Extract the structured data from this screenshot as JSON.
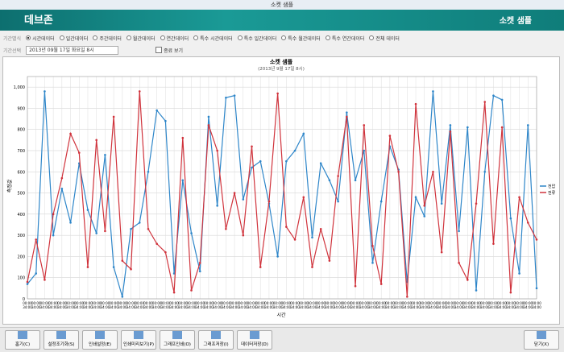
{
  "window": {
    "title": "소켓 샘플"
  },
  "header": {
    "logo": "데브존",
    "title": "소켓 샘플"
  },
  "toolbar": {
    "period_label": "기간별식",
    "options": [
      "시간데이터",
      "일간데이터",
      "주간데이터",
      "월간데이터",
      "연간데이터",
      "특수 시간데이터",
      "특수 일간데이터",
      "특수 월간데이터",
      "특수 연간데이터",
      "전체 데이터"
    ],
    "range_label": "기간선택",
    "date": "2013년 09월 17일 화요일 8시",
    "checkbox": "종료 보기"
  },
  "buttons": [
    "홈기(C)",
    "설정조기화(S)",
    "인쇄설정(E)",
    "인쇄미리보기(P)",
    "그래프인쇄(O)",
    "그래프저장(I)",
    "데이터저장(D)"
  ],
  "close_button": "닫기(X)",
  "chart_data": {
    "type": "line",
    "title": "소켓 샘플",
    "subtitle": "(2013년 9월 17일 8시)",
    "x_label": "시간",
    "y_label": "측정값",
    "categories": [
      "00:00 34:00",
      "00:00 34:00",
      "00:00 34:00",
      "00:00 34:00",
      "00:00 34:00",
      "00:00 34:00",
      "00:00 34:00",
      "00:00 34:00",
      "00:00 34:00",
      "00:00 34:00",
      "00:00 34:00",
      "00:00 34:00",
      "00:00 34:00",
      "00:00 34:00",
      "00:00 34:00",
      "00:00 34:00",
      "00:00 34:00",
      "00:00 34:00",
      "00:00 34:00",
      "00:00 34:00",
      "00:00 34:00",
      "00:00 34:00",
      "00:00 34:00",
      "00:00 34:00",
      "00:00 34:00",
      "00:00 34:00",
      "00:00 34:00",
      "00:00 34:00",
      "00:00 34:00",
      "00:00 34:00",
      "00:00 34:00",
      "00:00 34:00",
      "00:00 34:00",
      "00:00 34:00",
      "00:00 34:00",
      "00:00 34:00",
      "00:00 34:00",
      "00:00 34:00",
      "00:00 34:00",
      "00:00 34:00",
      "00:00 34:00",
      "00:00 34:00",
      "00:00 34:00",
      "00:00 34:00",
      "00:00 34:00",
      "00:00 34:00",
      "00:00 34:00",
      "00:00 34:00",
      "00:00 34:00",
      "00:00 34:00",
      "00:00 34:00",
      "00:00 34:00",
      "00:00 34:00",
      "00:00 34:00",
      "00:00 34:00",
      "00:00 34:00",
      "00:00 34:00",
      "00:00 34:00",
      "00:00 34:00",
      "00:00 34:00"
    ],
    "series": [
      {
        "name": "전압",
        "color": "#2e86c9",
        "values": [
          70,
          120,
          980,
          300,
          520,
          360,
          640,
          420,
          310,
          680,
          150,
          10,
          330,
          360,
          600,
          890,
          840,
          120,
          560,
          310,
          130,
          860,
          440,
          950,
          960,
          470,
          620,
          650,
          450,
          200,
          650,
          700,
          780,
          290,
          640,
          560,
          460,
          880,
          560,
          700,
          170,
          460,
          720,
          610,
          80,
          480,
          390,
          980,
          450,
          820,
          320,
          810,
          40,
          600,
          960,
          940,
          380,
          120,
          820,
          50
        ]
      },
      {
        "name": "전류",
        "color": "#d0333c",
        "values": [
          80,
          280,
          90,
          400,
          570,
          780,
          690,
          150,
          750,
          320,
          860,
          180,
          140,
          980,
          330,
          260,
          220,
          30,
          760,
          40,
          170,
          820,
          700,
          330,
          500,
          300,
          720,
          150,
          460,
          970,
          340,
          280,
          480,
          150,
          330,
          180,
          580,
          860,
          60,
          820,
          250,
          70,
          770,
          600,
          10,
          920,
          440,
          600,
          220,
          790,
          170,
          90,
          450,
          930,
          260,
          810,
          30,
          480,
          360,
          280
        ]
      }
    ],
    "ylim": [
      0,
      1050
    ],
    "yticks": [
      0,
      100,
      200,
      300,
      400,
      500,
      600,
      700,
      800,
      900,
      {
        "value": 1000,
        "label": "1,000"
      }
    ],
    "grid": true,
    "legend": "right"
  }
}
